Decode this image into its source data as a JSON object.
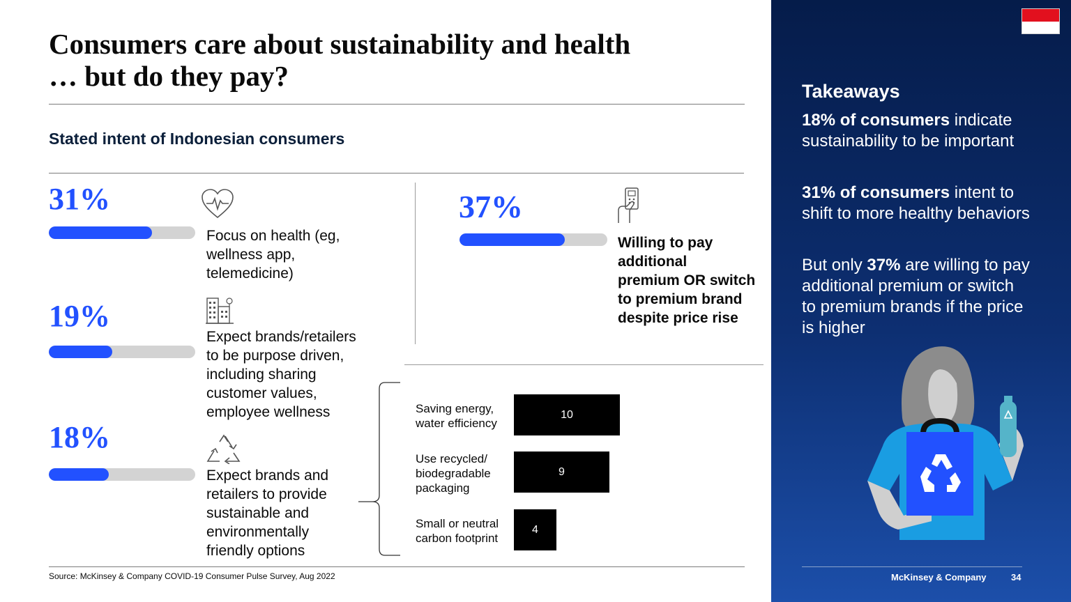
{
  "header": {
    "title_line1": "Consumers care about sustainability and health",
    "title_line2": "… but do they pay?"
  },
  "subtitle": "Stated intent of Indonesian consumers",
  "stats": [
    {
      "pct_label": "31%",
      "value": 31,
      "icon": "heart-pulse-icon",
      "text": [
        "Focus on health (eg,",
        "wellness app,",
        "telemedicine)"
      ]
    },
    {
      "pct_label": "19%",
      "value": 19,
      "icon": "buildings-icon",
      "text": [
        "Expect brands/retailers",
        "to be purpose driven,",
        "including sharing",
        "customer values,",
        "employee wellness"
      ]
    },
    {
      "pct_label": "18%",
      "value": 18,
      "icon": "recycle-icon",
      "text": [
        "Expect brands and",
        "retailers to provide",
        "sustainable and",
        "environmentally",
        "friendly options"
      ]
    }
  ],
  "willing": {
    "pct_label": "37%",
    "value": 37,
    "icon": "payment-terminal-icon",
    "text": [
      "Willing to pay",
      "additional",
      "premium OR switch",
      "to premium brand",
      "despite price rise"
    ]
  },
  "chart_data": {
    "type": "bar",
    "orientation": "horizontal",
    "categories": [
      [
        "Saving energy,",
        "water efficiency"
      ],
      [
        "Use recycled/",
        "biodegradable",
        "packaging"
      ],
      [
        "Small or neutral",
        "carbon footprint"
      ]
    ],
    "values": [
      10,
      9,
      4
    ],
    "value_labels": [
      "10",
      "9",
      "4"
    ],
    "xlim": [
      0,
      10
    ]
  },
  "source": "Source: McKinsey & Company COVID-19 Consumer Pulse Survey, Aug 2022",
  "takeaways": {
    "title": "Takeaways",
    "p1_bold": "18% of consumers",
    "p1_rest": "indicate sustainability to be important",
    "p2_bold": "31% of consumers",
    "p2_rest": "intent to shift to more healthy behaviors",
    "p3_pre": "But only",
    "p3_bold": "37%",
    "p3_rest": "are willing to pay additional premium or switch to premium brands if the price is higher"
  },
  "footer": {
    "brand": "McKinsey & Company",
    "page": "34"
  },
  "colors": {
    "accent": "#2251ff",
    "track": "#d3d3d3",
    "panel": "#0d2f72",
    "flag_red": "#e2101e"
  }
}
